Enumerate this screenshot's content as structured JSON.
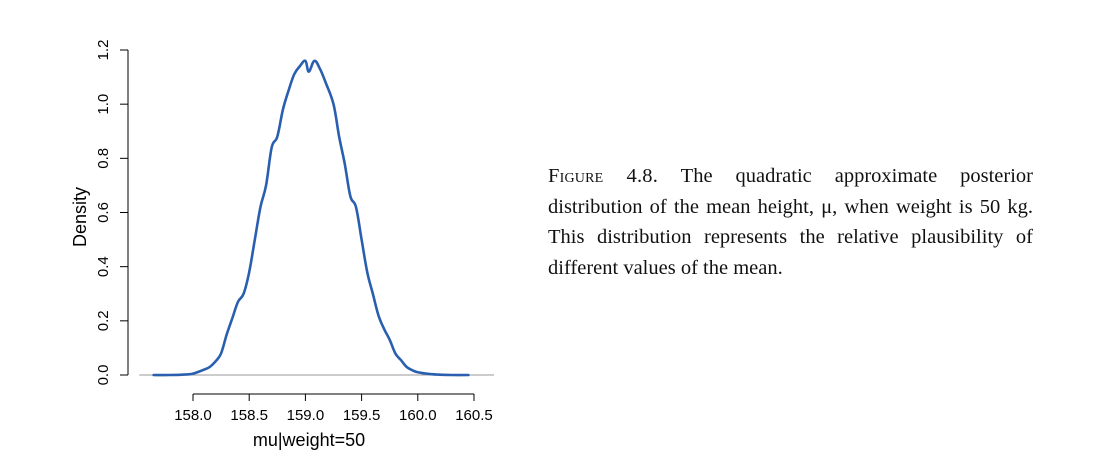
{
  "caption": {
    "label": "Figure 4.8.",
    "text": "The quadratic approximate posterior distribution of the mean height, μ, when weight is 50 kg. This distribution represents the relative plausibility of different values of the mean."
  },
  "chart_data": {
    "type": "line",
    "xlabel": "mu|weight=50",
    "ylabel": "Density",
    "xlim": [
      157.7,
      160.5
    ],
    "ylim": [
      0,
      1.2
    ],
    "x_ticks": [
      "158.0",
      "158.5",
      "159.0",
      "159.5",
      "160.0",
      "160.5"
    ],
    "y_ticks": [
      "0.0",
      "0.2",
      "0.4",
      "0.6",
      "0.8",
      "1.0",
      "1.2"
    ],
    "grid": false,
    "line_color": "#2a5fb0",
    "baseline_color": "#9a9a9a",
    "series": [
      {
        "x": [
          157.65,
          157.8,
          157.95,
          158.0,
          158.05,
          158.1,
          158.15,
          158.2,
          158.25,
          158.3,
          158.35,
          158.4,
          158.45,
          158.5,
          158.55,
          158.6,
          158.65,
          158.7,
          158.75,
          158.8,
          158.85,
          158.9,
          158.95,
          159.0,
          159.03,
          159.08,
          159.13,
          159.18,
          159.25,
          159.3,
          159.35,
          159.4,
          159.45,
          159.5,
          159.55,
          159.6,
          159.65,
          159.7,
          159.75,
          159.8,
          159.85,
          159.9,
          159.95,
          160.0,
          160.1,
          160.2,
          160.3,
          160.45
        ],
        "y": [
          0.0,
          0.0,
          0.002,
          0.005,
          0.012,
          0.02,
          0.03,
          0.05,
          0.08,
          0.15,
          0.21,
          0.27,
          0.3,
          0.38,
          0.5,
          0.62,
          0.7,
          0.84,
          0.88,
          0.98,
          1.05,
          1.11,
          1.14,
          1.16,
          1.12,
          1.16,
          1.13,
          1.08,
          1.0,
          0.88,
          0.78,
          0.66,
          0.62,
          0.5,
          0.38,
          0.3,
          0.22,
          0.17,
          0.13,
          0.08,
          0.055,
          0.03,
          0.018,
          0.01,
          0.004,
          0.001,
          0.0,
          0.0
        ]
      }
    ]
  }
}
